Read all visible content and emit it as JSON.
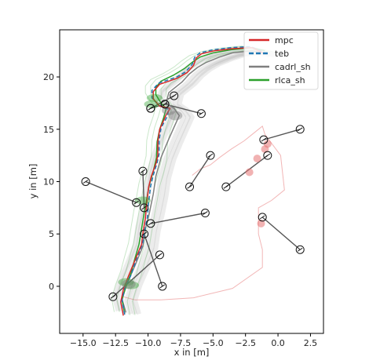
{
  "chart_data": {
    "type": "line",
    "title": "",
    "xlabel": "x in [m]",
    "ylabel": "y in [m]",
    "xlim": [
      -16.8,
      3.5
    ],
    "ylim": [
      -4.5,
      24.5
    ],
    "xticks": [
      -15.0,
      -12.5,
      -10.0,
      -7.5,
      -5.0,
      -2.5,
      0.0,
      2.5
    ],
    "xtick_labels": [
      "−15.0",
      "−12.5",
      "−10.0",
      "−7.5",
      "−5.0",
      "−2.5",
      "0.0",
      "2.5"
    ],
    "yticks": [
      0,
      5,
      10,
      15,
      20
    ],
    "ytick_labels": [
      "0",
      "5",
      "10",
      "15",
      "20"
    ],
    "grid": false,
    "legend_position": "top-right",
    "colors": {
      "mpc": "#d62728",
      "teb": "#1f77b4",
      "cadrl_sh": "#7f7f7f",
      "rlca_sh": "#2ca02c",
      "obstacle_line": "#555555",
      "obstacle_marker": "#111111"
    },
    "series": [
      {
        "name": "mpc",
        "style": "solid",
        "x": [
          -11.9,
          -12.1,
          -11.9,
          -11.5,
          -11.0,
          -10.5,
          -10.4,
          -10.2,
          -10.1,
          -9.95,
          -9.75,
          -9.4,
          -9.25,
          -9.25,
          -9.1,
          -8.6,
          -8.3,
          -9.1,
          -9.6,
          -9.6,
          -9.1,
          -7.7,
          -7.0,
          -6.5,
          -6.3,
          -5.9,
          -4.9,
          -3.5,
          -2.0,
          -1.5,
          -1.0
        ],
        "y": [
          -2.8,
          -1.5,
          -0.3,
          1.0,
          2.5,
          4.0,
          5.0,
          6.5,
          8.0,
          9.5,
          10.5,
          11.7,
          12.5,
          13.8,
          15.0,
          16.4,
          17.0,
          17.2,
          17.9,
          18.6,
          19.3,
          19.9,
          20.4,
          21.1,
          21.8,
          22.2,
          22.5,
          22.7,
          22.8,
          22.5,
          22.2
        ]
      },
      {
        "name": "teb",
        "style": "dashed",
        "x": [
          -11.8,
          -12.0,
          -11.8,
          -11.3,
          -10.9,
          -10.4,
          -10.3,
          -10.05,
          -9.95,
          -9.8,
          -9.6,
          -9.3,
          -9.15,
          -9.15,
          -9.0,
          -8.5,
          -8.4,
          -9.2,
          -9.7,
          -9.7,
          -9.2,
          -7.8,
          -7.1,
          -6.6,
          -6.4,
          -6.0,
          -5.0,
          -3.6,
          -2.1,
          -1.5,
          -1.0
        ],
        "y": [
          -2.7,
          -1.4,
          -0.2,
          1.1,
          2.6,
          4.1,
          5.1,
          6.6,
          8.1,
          9.6,
          10.6,
          11.8,
          12.6,
          13.9,
          15.1,
          16.3,
          16.9,
          17.3,
          18.0,
          18.7,
          19.4,
          20.0,
          20.5,
          21.2,
          21.9,
          22.3,
          22.6,
          22.8,
          22.9,
          22.6,
          22.3
        ]
      },
      {
        "name": "cadrl_sh",
        "style": "solid",
        "x": [
          -11.7,
          -12.0,
          -11.6,
          -11.0,
          -10.4,
          -10.2,
          -9.9,
          -9.6,
          -9.4,
          -9.0,
          -8.5,
          -8.0,
          -7.6,
          -8.0,
          -8.6,
          -8.4,
          -7.4,
          -6.8,
          -6.2,
          -5.5,
          -4.5,
          -3.5,
          -2.0,
          -1.0
        ],
        "y": [
          -2.5,
          -1.2,
          0.3,
          2.0,
          3.8,
          5.5,
          7.0,
          8.8,
          10.5,
          12.3,
          13.8,
          15.2,
          16.3,
          17.0,
          17.5,
          18.5,
          19.5,
          20.3,
          20.9,
          21.4,
          21.9,
          22.3,
          22.5,
          22.2
        ]
      },
      {
        "name": "rlca_sh",
        "style": "solid",
        "x": [
          -11.8,
          -12.0,
          -11.7,
          -11.3,
          -11.0,
          -10.7,
          -10.5,
          -10.3,
          -10.1,
          -9.9,
          -9.6,
          -9.35,
          -9.3,
          -9.1,
          -8.8,
          -8.6,
          -9.0,
          -9.4,
          -9.4,
          -9.0,
          -8.0,
          -7.2,
          -6.6,
          -6.0,
          -5.0,
          -3.6,
          -2.0,
          -1.0
        ],
        "y": [
          -2.6,
          -1.3,
          0.0,
          1.3,
          2.7,
          4.0,
          5.5,
          7.0,
          8.3,
          9.7,
          11.0,
          12.3,
          13.8,
          15.0,
          16.1,
          17.0,
          17.5,
          18.3,
          19.0,
          19.6,
          20.2,
          20.8,
          21.4,
          21.9,
          22.3,
          22.6,
          22.8,
          22.5
        ]
      }
    ],
    "obstacle_paths": [
      {
        "x": [
          -8.0,
          -9.8
        ],
        "y": [
          18.2,
          17.0
        ]
      },
      {
        "x": [
          -9.8,
          -8.7
        ],
        "y": [
          17.0,
          17.4
        ]
      },
      {
        "x": [
          -8.7,
          -5.9
        ],
        "y": [
          17.4,
          16.5
        ]
      },
      {
        "x": [
          -14.8,
          -10.9
        ],
        "y": [
          10.0,
          8.0
        ]
      },
      {
        "x": [
          -10.4,
          -10.3
        ],
        "y": [
          11.0,
          7.5
        ]
      },
      {
        "x": [
          -9.8,
          -5.6
        ],
        "y": [
          6.0,
          7.0
        ]
      },
      {
        "x": [
          -10.3,
          -8.9
        ],
        "y": [
          5.0,
          0.0
        ]
      },
      {
        "x": [
          -9.1,
          -12.7
        ],
        "y": [
          3.0,
          -1.0
        ]
      },
      {
        "x": [
          -6.8,
          -5.2
        ],
        "y": [
          9.5,
          12.5
        ]
      },
      {
        "x": [
          -4.0,
          -0.8
        ],
        "y": [
          9.5,
          12.5
        ]
      },
      {
        "x": [
          -1.1,
          1.7
        ],
        "y": [
          14.0,
          15.0
        ]
      },
      {
        "x": [
          -1.2,
          1.7
        ],
        "y": [
          6.6,
          3.5
        ]
      }
    ],
    "background_path": {
      "x": [
        -11.9,
        -11.0,
        -9.0,
        -6.5,
        -3.5,
        -1.2,
        -1.2,
        -1.5,
        -1.5,
        -0.5,
        0.5,
        0.2,
        -1.0,
        -1.2,
        -1.8,
        -2.6,
        -3.6,
        -4.5,
        -5.2,
        -6.0,
        -6.6
      ],
      "y": [
        -1.0,
        -1.3,
        -1.3,
        -1.1,
        -0.2,
        1.8,
        3.5,
        5.0,
        7.5,
        8.2,
        9.2,
        12.5,
        14.5,
        15.3,
        14.7,
        13.9,
        13.1,
        12.3,
        11.6,
        11.2,
        10.6
      ]
    },
    "red_agents": [
      {
        "x": -2.2,
        "y": 10.9
      },
      {
        "x": -1.6,
        "y": 12.2
      },
      {
        "x": -1.0,
        "y": 13.1
      },
      {
        "x": -0.8,
        "y": 13.6
      },
      {
        "x": -1.3,
        "y": 6.0
      }
    ],
    "legend": [
      {
        "label": "mpc",
        "color": "#d62728",
        "style": "solid"
      },
      {
        "label": "teb",
        "color": "#1f77b4",
        "style": "dashed"
      },
      {
        "label": "cadrl_sh",
        "color": "#7f7f7f",
        "style": "solid"
      },
      {
        "label": "rlca_sh",
        "color": "#2ca02c",
        "style": "solid"
      }
    ]
  }
}
